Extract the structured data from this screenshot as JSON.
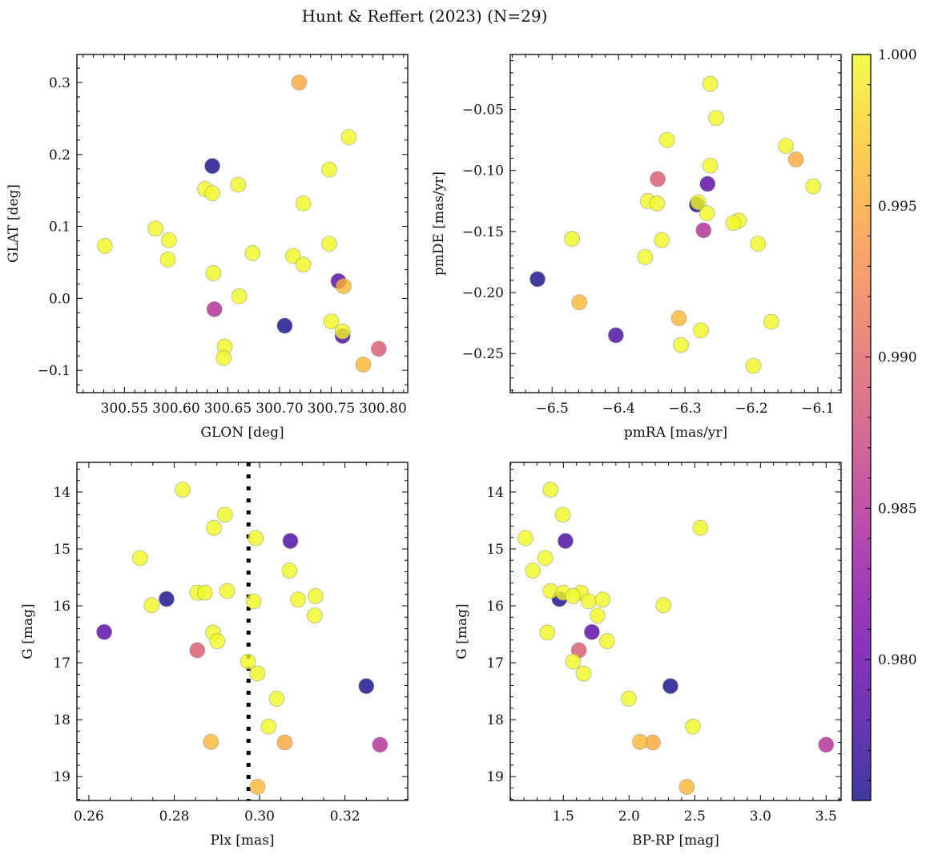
{
  "title": "Hunt & Reffert (2023) (N=29)",
  "colorbar": {
    "range": [
      0.97534,
      1.0
    ],
    "ticks": [
      1.0,
      0.995,
      0.99,
      0.985,
      0.98
    ],
    "tick_labels": [
      "1.000",
      "0.995",
      "0.990",
      "0.985",
      "0.980"
    ],
    "minor_step": 0.001,
    "colormap": "plasma"
  },
  "chart_data": [
    {
      "type": "scatter",
      "xlabel": "GLON [deg]",
      "ylabel": "GLAT [deg]",
      "xlim": [
        300.504,
        300.824
      ],
      "ylim": [
        -0.131,
        0.339
      ],
      "xticks": [
        300.55,
        300.6,
        300.65,
        300.7,
        300.75,
        300.8
      ],
      "xtick_labels": [
        "300.55",
        "300.60",
        "300.65",
        "300.70",
        "300.75",
        "300.80"
      ],
      "xminor": 0.01,
      "yticks": [
        -0.1,
        0.0,
        0.1,
        0.2,
        0.3
      ],
      "ytick_labels": [
        "−0.1",
        "0.0",
        "0.1",
        "0.2",
        "0.3"
      ],
      "yminor": 0.02,
      "x": [
        300.531,
        300.58,
        300.593,
        300.592,
        300.628,
        300.635,
        300.635,
        300.636,
        300.637,
        300.66,
        300.661,
        300.647,
        300.646,
        300.674,
        300.705,
        300.713,
        300.723,
        300.723,
        300.719,
        300.748,
        300.748,
        300.75,
        300.757,
        300.762,
        300.761,
        300.761,
        300.767,
        300.796,
        300.781
      ],
      "y": [
        0.073,
        0.097,
        0.081,
        0.054,
        0.152,
        0.146,
        0.184,
        0.035,
        -0.015,
        0.158,
        0.003,
        -0.067,
        -0.083,
        0.063,
        -0.038,
        0.059,
        0.132,
        0.047,
        0.3,
        0.179,
        0.076,
        -0.032,
        0.024,
        0.017,
        -0.046,
        -0.052,
        0.224,
        -0.07,
        -0.092
      ],
      "c": [
        1,
        1,
        1,
        1,
        1,
        1,
        0.9755,
        1,
        0.985,
        1,
        1,
        1,
        1,
        1,
        0.9755,
        1,
        1,
        1,
        0.995,
        1,
        1,
        1,
        0.979,
        0.996,
        1,
        0.978,
        1,
        0.989,
        0.996
      ]
    },
    {
      "type": "scatter",
      "xlabel": "pmRA [mas/yr]",
      "ylabel": "pmDE [mas/yr]",
      "xlim": [
        -6.563,
        -6.065
      ],
      "ylim": [
        -0.282,
        -0.005
      ],
      "xticks": [
        -6.5,
        -6.4,
        -6.3,
        -6.2,
        -6.1
      ],
      "xtick_labels": [
        "−6.5",
        "−6.4",
        "−6.3",
        "−6.2",
        "−6.1"
      ],
      "xminor": 0.02,
      "yticks": [
        -0.25,
        -0.2,
        -0.15,
        -0.1,
        -0.05
      ],
      "ytick_labels": [
        "−0.25",
        "−0.20",
        "−0.15",
        "−0.10",
        "−0.05"
      ],
      "yminor": 0.01,
      "x": [
        -6.262,
        -6.253,
        -6.327,
        -6.148,
        -6.133,
        -6.262,
        -6.341,
        -6.266,
        -6.107,
        -6.356,
        -6.342,
        -6.282,
        -6.28,
        -6.267,
        -6.219,
        -6.227,
        -6.272,
        -6.47,
        -6.335,
        -6.19,
        -6.36,
        -6.522,
        -6.459,
        -6.309,
        -6.17,
        -6.404,
        -6.276,
        -6.306,
        -6.197
      ],
      "y": [
        -0.029,
        -0.057,
        -0.075,
        -0.08,
        -0.091,
        -0.096,
        -0.107,
        -0.111,
        -0.113,
        -0.125,
        -0.127,
        -0.128,
        -0.126,
        -0.135,
        -0.141,
        -0.143,
        -0.149,
        -0.156,
        -0.157,
        -0.16,
        -0.171,
        -0.189,
        -0.208,
        -0.221,
        -0.224,
        -0.235,
        -0.231,
        -0.243,
        -0.26
      ],
      "c": [
        1,
        1,
        1,
        1,
        0.995,
        1,
        0.989,
        0.979,
        1,
        1,
        1,
        0.9755,
        1,
        1,
        1,
        1,
        0.985,
        1,
        1,
        1,
        1,
        0.9755,
        0.996,
        0.996,
        1,
        0.978,
        1,
        1,
        1
      ]
    },
    {
      "type": "scatter",
      "xlabel": "Plx [mas]",
      "ylabel": "G [mag]",
      "xlim": [
        0.2572,
        0.3347
      ],
      "ylim": [
        19.42,
        13.48
      ],
      "xticks": [
        0.26,
        0.28,
        0.3,
        0.32
      ],
      "xtick_labels": [
        "0.26",
        "0.28",
        "0.30",
        "0.32"
      ],
      "xminor": 0.005,
      "yticks": [
        14,
        15,
        16,
        17,
        18,
        19
      ],
      "ytick_labels": [
        "14",
        "15",
        "16",
        "17",
        "18",
        "19"
      ],
      "yminor": 0.2,
      "vline": 0.2974,
      "x": [
        0.282,
        0.2919,
        0.2893,
        0.2991,
        0.3072,
        0.272,
        0.307,
        0.2854,
        0.2872,
        0.2924,
        0.2782,
        0.2747,
        0.2986,
        0.309,
        0.3131,
        0.3129,
        0.2636,
        0.2891,
        0.2901,
        0.2854,
        0.2973,
        0.2995,
        0.325,
        0.304,
        0.3021,
        0.2886,
        0.3059,
        0.3282,
        0.2995
      ],
      "y": [
        13.96,
        14.4,
        14.63,
        14.81,
        14.86,
        15.16,
        15.38,
        15.77,
        15.77,
        15.74,
        15.88,
        15.99,
        15.92,
        15.89,
        15.83,
        16.17,
        16.46,
        16.47,
        16.62,
        16.78,
        16.98,
        17.19,
        17.41,
        17.63,
        18.12,
        18.39,
        18.4,
        18.44,
        19.18
      ],
      "c": [
        1,
        1,
        1,
        1,
        0.978,
        1,
        1,
        1,
        1,
        1,
        0.9755,
        1,
        1,
        1,
        1,
        1,
        0.979,
        1,
        1,
        0.989,
        1,
        1,
        0.9755,
        1,
        1,
        0.996,
        0.995,
        0.985,
        0.996
      ]
    },
    {
      "type": "scatter",
      "xlabel": "BP-RP [mag]",
      "ylabel": "G [mag]",
      "xlim": [
        1.0957,
        3.614
      ],
      "ylim": [
        19.42,
        13.48
      ],
      "xticks": [
        1.5,
        2.0,
        2.5,
        3.0,
        3.5
      ],
      "xtick_labels": [
        "1.5",
        "2.0",
        "2.5",
        "3.0",
        "3.5"
      ],
      "xminor": 0.1,
      "yticks": [
        14,
        15,
        16,
        17,
        18,
        19
      ],
      "ytick_labels": [
        "14",
        "15",
        "16",
        "17",
        "18",
        "19"
      ],
      "yminor": 0.2,
      "x": [
        1.402,
        1.496,
        2.543,
        1.211,
        1.516,
        1.362,
        1.268,
        1.402,
        1.498,
        1.634,
        1.573,
        1.47,
        1.693,
        1.799,
        2.262,
        1.76,
        1.378,
        1.717,
        1.833,
        1.618,
        1.575,
        1.654,
        2.315,
        1.998,
        2.486,
        2.083,
        2.181,
        3.5,
        2.439
      ],
      "y": [
        13.96,
        14.4,
        14.63,
        14.81,
        14.86,
        15.16,
        15.38,
        15.74,
        15.77,
        15.77,
        15.83,
        15.88,
        15.92,
        15.89,
        15.99,
        16.17,
        16.47,
        16.46,
        16.62,
        16.78,
        16.98,
        17.19,
        17.41,
        17.63,
        18.12,
        18.39,
        18.4,
        18.44,
        19.18
      ],
      "c": [
        1,
        1,
        1,
        1,
        0.978,
        1,
        1,
        1,
        1,
        1,
        1,
        0.9755,
        1,
        1,
        1,
        1,
        1,
        0.979,
        1,
        0.989,
        1,
        1,
        0.9755,
        1,
        1,
        0.996,
        0.995,
        0.985,
        0.996
      ]
    }
  ]
}
